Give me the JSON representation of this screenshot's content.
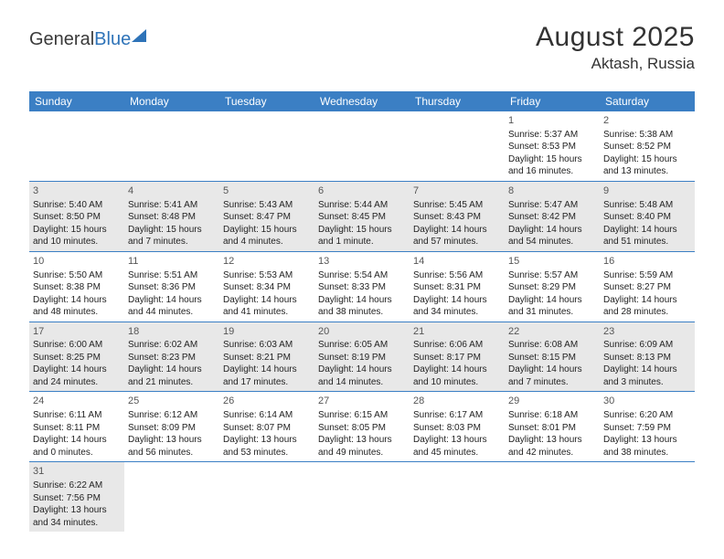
{
  "logo": {
    "text1": "General",
    "text2": "Blue"
  },
  "title": "August 2025",
  "location": "Aktash, Russia",
  "colors": {
    "header_bg": "#3b7fc4",
    "header_text": "#ffffff",
    "row_alt_bg": "#e8e8e8",
    "text": "#222222",
    "border": "#3b7fc4",
    "logo_accent": "#2e73b8"
  },
  "day_names": [
    "Sunday",
    "Monday",
    "Tuesday",
    "Wednesday",
    "Thursday",
    "Friday",
    "Saturday"
  ],
  "weeks": [
    [
      {
        "empty": true
      },
      {
        "empty": true
      },
      {
        "empty": true
      },
      {
        "empty": true
      },
      {
        "empty": true
      },
      {
        "day": "1",
        "sunrise": "Sunrise: 5:37 AM",
        "sunset": "Sunset: 8:53 PM",
        "dl1": "Daylight: 15 hours",
        "dl2": "and 16 minutes."
      },
      {
        "day": "2",
        "sunrise": "Sunrise: 5:38 AM",
        "sunset": "Sunset: 8:52 PM",
        "dl1": "Daylight: 15 hours",
        "dl2": "and 13 minutes."
      }
    ],
    [
      {
        "day": "3",
        "sunrise": "Sunrise: 5:40 AM",
        "sunset": "Sunset: 8:50 PM",
        "dl1": "Daylight: 15 hours",
        "dl2": "and 10 minutes."
      },
      {
        "day": "4",
        "sunrise": "Sunrise: 5:41 AM",
        "sunset": "Sunset: 8:48 PM",
        "dl1": "Daylight: 15 hours",
        "dl2": "and 7 minutes."
      },
      {
        "day": "5",
        "sunrise": "Sunrise: 5:43 AM",
        "sunset": "Sunset: 8:47 PM",
        "dl1": "Daylight: 15 hours",
        "dl2": "and 4 minutes."
      },
      {
        "day": "6",
        "sunrise": "Sunrise: 5:44 AM",
        "sunset": "Sunset: 8:45 PM",
        "dl1": "Daylight: 15 hours",
        "dl2": "and 1 minute."
      },
      {
        "day": "7",
        "sunrise": "Sunrise: 5:45 AM",
        "sunset": "Sunset: 8:43 PM",
        "dl1": "Daylight: 14 hours",
        "dl2": "and 57 minutes."
      },
      {
        "day": "8",
        "sunrise": "Sunrise: 5:47 AM",
        "sunset": "Sunset: 8:42 PM",
        "dl1": "Daylight: 14 hours",
        "dl2": "and 54 minutes."
      },
      {
        "day": "9",
        "sunrise": "Sunrise: 5:48 AM",
        "sunset": "Sunset: 8:40 PM",
        "dl1": "Daylight: 14 hours",
        "dl2": "and 51 minutes."
      }
    ],
    [
      {
        "day": "10",
        "sunrise": "Sunrise: 5:50 AM",
        "sunset": "Sunset: 8:38 PM",
        "dl1": "Daylight: 14 hours",
        "dl2": "and 48 minutes."
      },
      {
        "day": "11",
        "sunrise": "Sunrise: 5:51 AM",
        "sunset": "Sunset: 8:36 PM",
        "dl1": "Daylight: 14 hours",
        "dl2": "and 44 minutes."
      },
      {
        "day": "12",
        "sunrise": "Sunrise: 5:53 AM",
        "sunset": "Sunset: 8:34 PM",
        "dl1": "Daylight: 14 hours",
        "dl2": "and 41 minutes."
      },
      {
        "day": "13",
        "sunrise": "Sunrise: 5:54 AM",
        "sunset": "Sunset: 8:33 PM",
        "dl1": "Daylight: 14 hours",
        "dl2": "and 38 minutes."
      },
      {
        "day": "14",
        "sunrise": "Sunrise: 5:56 AM",
        "sunset": "Sunset: 8:31 PM",
        "dl1": "Daylight: 14 hours",
        "dl2": "and 34 minutes."
      },
      {
        "day": "15",
        "sunrise": "Sunrise: 5:57 AM",
        "sunset": "Sunset: 8:29 PM",
        "dl1": "Daylight: 14 hours",
        "dl2": "and 31 minutes."
      },
      {
        "day": "16",
        "sunrise": "Sunrise: 5:59 AM",
        "sunset": "Sunset: 8:27 PM",
        "dl1": "Daylight: 14 hours",
        "dl2": "and 28 minutes."
      }
    ],
    [
      {
        "day": "17",
        "sunrise": "Sunrise: 6:00 AM",
        "sunset": "Sunset: 8:25 PM",
        "dl1": "Daylight: 14 hours",
        "dl2": "and 24 minutes."
      },
      {
        "day": "18",
        "sunrise": "Sunrise: 6:02 AM",
        "sunset": "Sunset: 8:23 PM",
        "dl1": "Daylight: 14 hours",
        "dl2": "and 21 minutes."
      },
      {
        "day": "19",
        "sunrise": "Sunrise: 6:03 AM",
        "sunset": "Sunset: 8:21 PM",
        "dl1": "Daylight: 14 hours",
        "dl2": "and 17 minutes."
      },
      {
        "day": "20",
        "sunrise": "Sunrise: 6:05 AM",
        "sunset": "Sunset: 8:19 PM",
        "dl1": "Daylight: 14 hours",
        "dl2": "and 14 minutes."
      },
      {
        "day": "21",
        "sunrise": "Sunrise: 6:06 AM",
        "sunset": "Sunset: 8:17 PM",
        "dl1": "Daylight: 14 hours",
        "dl2": "and 10 minutes."
      },
      {
        "day": "22",
        "sunrise": "Sunrise: 6:08 AM",
        "sunset": "Sunset: 8:15 PM",
        "dl1": "Daylight: 14 hours",
        "dl2": "and 7 minutes."
      },
      {
        "day": "23",
        "sunrise": "Sunrise: 6:09 AM",
        "sunset": "Sunset: 8:13 PM",
        "dl1": "Daylight: 14 hours",
        "dl2": "and 3 minutes."
      }
    ],
    [
      {
        "day": "24",
        "sunrise": "Sunrise: 6:11 AM",
        "sunset": "Sunset: 8:11 PM",
        "dl1": "Daylight: 14 hours",
        "dl2": "and 0 minutes."
      },
      {
        "day": "25",
        "sunrise": "Sunrise: 6:12 AM",
        "sunset": "Sunset: 8:09 PM",
        "dl1": "Daylight: 13 hours",
        "dl2": "and 56 minutes."
      },
      {
        "day": "26",
        "sunrise": "Sunrise: 6:14 AM",
        "sunset": "Sunset: 8:07 PM",
        "dl1": "Daylight: 13 hours",
        "dl2": "and 53 minutes."
      },
      {
        "day": "27",
        "sunrise": "Sunrise: 6:15 AM",
        "sunset": "Sunset: 8:05 PM",
        "dl1": "Daylight: 13 hours",
        "dl2": "and 49 minutes."
      },
      {
        "day": "28",
        "sunrise": "Sunrise: 6:17 AM",
        "sunset": "Sunset: 8:03 PM",
        "dl1": "Daylight: 13 hours",
        "dl2": "and 45 minutes."
      },
      {
        "day": "29",
        "sunrise": "Sunrise: 6:18 AM",
        "sunset": "Sunset: 8:01 PM",
        "dl1": "Daylight: 13 hours",
        "dl2": "and 42 minutes."
      },
      {
        "day": "30",
        "sunrise": "Sunrise: 6:20 AM",
        "sunset": "Sunset: 7:59 PM",
        "dl1": "Daylight: 13 hours",
        "dl2": "and 38 minutes."
      }
    ],
    [
      {
        "day": "31",
        "sunrise": "Sunrise: 6:22 AM",
        "sunset": "Sunset: 7:56 PM",
        "dl1": "Daylight: 13 hours",
        "dl2": "and 34 minutes."
      },
      {
        "empty": true
      },
      {
        "empty": true
      },
      {
        "empty": true
      },
      {
        "empty": true
      },
      {
        "empty": true
      },
      {
        "empty": true
      }
    ]
  ]
}
